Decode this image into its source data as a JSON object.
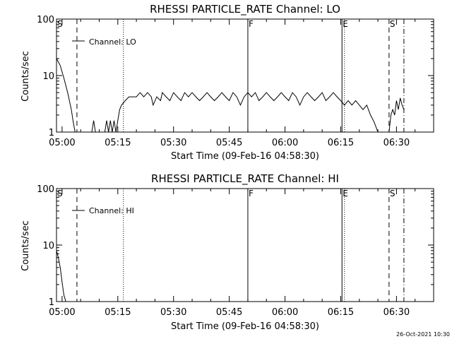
{
  "chart_data": [
    {
      "type": "line",
      "title": "RHESSI PARTICLE_RATE Channel: LO",
      "xlabel": "Start Time (09-Feb-16 04:58:30)",
      "ylabel": "Counts/sec",
      "yscale": "log",
      "ylim": [
        1,
        100
      ],
      "xlim": [
        "04:58:30",
        "06:40:00"
      ],
      "x_ticks": [
        "05:00",
        "05:15",
        "05:30",
        "05:45",
        "06:00",
        "06:15",
        "06:30"
      ],
      "y_ticks": [
        "1",
        "10",
        "100"
      ],
      "legend": {
        "placement": "top-left",
        "entries": [
          "Channel: LO"
        ]
      },
      "markers": [
        {
          "label": "S",
          "time": "04:58:30",
          "style": "dashed"
        },
        {
          "label": "",
          "time": "05:04:00",
          "style": "dashed"
        },
        {
          "label": "",
          "time": "05:16:30",
          "style": "dotted"
        },
        {
          "label": "F",
          "time": "05:50:00",
          "style": "solid"
        },
        {
          "label": "E",
          "time": "06:15:20",
          "style": "solid"
        },
        {
          "label": "",
          "time": "06:16:00",
          "style": "dotted"
        },
        {
          "label": "S",
          "time": "06:28:00",
          "style": "dashed"
        },
        {
          "label": "",
          "time": "06:32:00",
          "style": "dash-dot"
        }
      ],
      "series": [
        {
          "points": [
            [
              "04:58:30",
              20
            ],
            [
              "04:59:30",
              15
            ],
            [
              "05:00:30",
              9
            ],
            [
              "05:01:30",
              5
            ],
            [
              "05:02:30",
              2.5
            ],
            [
              "05:03:00",
              1.5
            ],
            [
              "05:03:30",
              1.0
            ],
            [
              "05:08:00",
              1
            ],
            [
              "05:08:30",
              1.6
            ],
            [
              "05:09:00",
              1
            ],
            [
              "05:11:30",
              1
            ],
            [
              "05:12:00",
              1.6
            ],
            [
              "05:12:30",
              1
            ],
            [
              "05:13:00",
              1.6
            ],
            [
              "05:13:30",
              1
            ],
            [
              "05:14:00",
              1.6
            ],
            [
              "05:14:30",
              1
            ],
            [
              "05:15:00",
              1.6
            ],
            [
              "05:15:30",
              2.5
            ],
            [
              "05:16:00",
              3.0
            ],
            [
              "05:17:00",
              3.6
            ],
            [
              "05:18:00",
              4.2
            ],
            [
              "05:19:00",
              4.2
            ],
            [
              "05:20:00",
              4.2
            ],
            [
              "05:21:00",
              5.0
            ],
            [
              "05:22:00",
              4.2
            ],
            [
              "05:23:00",
              5.0
            ],
            [
              "05:24:00",
              4.2
            ],
            [
              "05:24:30",
              3.0
            ],
            [
              "05:25:30",
              4.2
            ],
            [
              "05:26:30",
              3.6
            ],
            [
              "05:27:00",
              5.0
            ],
            [
              "05:28:00",
              4.2
            ],
            [
              "05:29:00",
              3.6
            ],
            [
              "05:30:00",
              5.0
            ],
            [
              "05:31:00",
              4.2
            ],
            [
              "05:32:00",
              3.6
            ],
            [
              "05:33:00",
              5.0
            ],
            [
              "05:34:00",
              4.2
            ],
            [
              "05:35:00",
              5.0
            ],
            [
              "05:36:00",
              4.2
            ],
            [
              "05:37:00",
              3.6
            ],
            [
              "05:38:00",
              4.2
            ],
            [
              "05:39:00",
              5.0
            ],
            [
              "05:40:00",
              4.2
            ],
            [
              "05:41:00",
              3.6
            ],
            [
              "05:42:00",
              4.2
            ],
            [
              "05:43:00",
              5.0
            ],
            [
              "05:44:00",
              4.2
            ],
            [
              "05:45:00",
              3.6
            ],
            [
              "05:46:00",
              5.0
            ],
            [
              "05:47:00",
              4.2
            ],
            [
              "05:48:00",
              3.0
            ],
            [
              "05:49:00",
              4.2
            ],
            [
              "05:50:00",
              5.0
            ],
            [
              "05:51:00",
              4.2
            ],
            [
              "05:52:00",
              5.0
            ],
            [
              "05:53:00",
              3.6
            ],
            [
              "05:54:00",
              4.2
            ],
            [
              "05:55:00",
              5.0
            ],
            [
              "05:56:00",
              4.2
            ],
            [
              "05:57:00",
              3.6
            ],
            [
              "05:58:00",
              4.2
            ],
            [
              "05:59:00",
              5.0
            ],
            [
              "06:00:00",
              4.2
            ],
            [
              "06:01:00",
              3.6
            ],
            [
              "06:02:00",
              5.0
            ],
            [
              "06:03:00",
              4.2
            ],
            [
              "06:04:00",
              3.0
            ],
            [
              "06:05:00",
              4.2
            ],
            [
              "06:06:00",
              5.0
            ],
            [
              "06:07:00",
              4.2
            ],
            [
              "06:08:00",
              3.6
            ],
            [
              "06:09:00",
              4.2
            ],
            [
              "06:10:00",
              5.0
            ],
            [
              "06:11:00",
              3.6
            ],
            [
              "06:12:00",
              4.2
            ],
            [
              "06:13:00",
              5.0
            ],
            [
              "06:14:00",
              4.2
            ],
            [
              "06:15:00",
              3.6
            ],
            [
              "06:16:00",
              3.0
            ],
            [
              "06:17:00",
              3.6
            ],
            [
              "06:18:00",
              3.0
            ],
            [
              "06:19:00",
              3.6
            ],
            [
              "06:20:00",
              3.0
            ],
            [
              "06:21:00",
              2.5
            ],
            [
              "06:22:00",
              3.0
            ],
            [
              "06:23:00",
              2.0
            ],
            [
              "06:24:00",
              1.5
            ],
            [
              "06:25:00",
              1.0
            ],
            [
              "06:28:00",
              1.0
            ],
            [
              "06:28:30",
              2.0
            ],
            [
              "06:29:00",
              2.5
            ],
            [
              "06:29:30",
              2.0
            ],
            [
              "06:30:00",
              3.6
            ],
            [
              "06:30:30",
              2.5
            ],
            [
              "06:31:00",
              4.0
            ],
            [
              "06:31:30",
              3.0
            ],
            [
              "06:32:00",
              2.5
            ]
          ]
        }
      ]
    },
    {
      "type": "line",
      "title": "RHESSI PARTICLE_RATE Channel: HI",
      "xlabel": "Start Time (09-Feb-16 04:58:30)",
      "ylabel": "Counts/sec",
      "yscale": "log",
      "ylim": [
        1,
        100
      ],
      "xlim": [
        "04:58:30",
        "06:40:00"
      ],
      "x_ticks": [
        "05:00",
        "05:15",
        "05:30",
        "05:45",
        "06:00",
        "06:15",
        "06:30"
      ],
      "y_ticks": [
        "1",
        "10",
        "100"
      ],
      "legend": {
        "placement": "top-left",
        "entries": [
          "Channel: HI"
        ]
      },
      "markers": [
        {
          "label": "S",
          "time": "04:58:30",
          "style": "dashed"
        },
        {
          "label": "",
          "time": "05:04:00",
          "style": "dashed"
        },
        {
          "label": "",
          "time": "05:16:30",
          "style": "dotted"
        },
        {
          "label": "F",
          "time": "05:50:00",
          "style": "solid"
        },
        {
          "label": "E",
          "time": "06:15:20",
          "style": "solid"
        },
        {
          "label": "",
          "time": "06:16:00",
          "style": "dotted"
        },
        {
          "label": "S",
          "time": "06:28:00",
          "style": "dashed"
        },
        {
          "label": "",
          "time": "06:32:00",
          "style": "dash-dot"
        }
      ],
      "series": [
        {
          "points": [
            [
              "04:58:30",
              8
            ],
            [
              "04:59:00",
              6
            ],
            [
              "04:59:30",
              4
            ],
            [
              "05:00:00",
              2.2
            ],
            [
              "05:00:30",
              1.3
            ],
            [
              "05:01:00",
              1.0
            ]
          ]
        }
      ]
    }
  ],
  "footer": {
    "date_stamp": "26-Oct-2021 10:30"
  }
}
